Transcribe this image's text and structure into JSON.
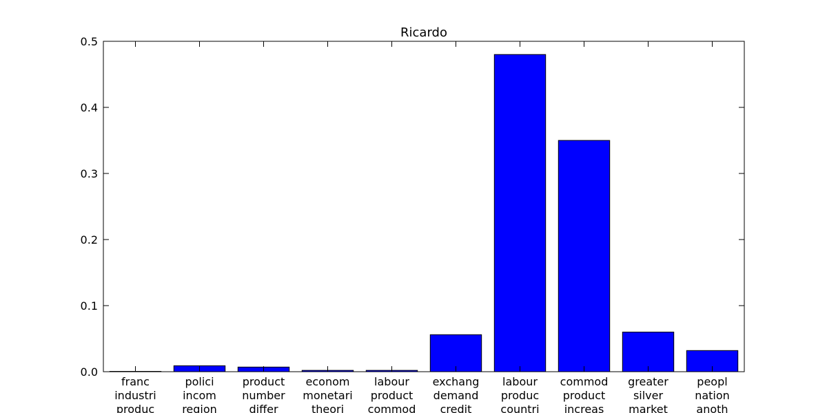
{
  "chart_data": {
    "type": "bar",
    "title": "Ricardo",
    "xlabel": "",
    "ylabel": "",
    "ylim": [
      0,
      0.5
    ],
    "yticks": [
      "0.0",
      "0.1",
      "0.2",
      "0.3",
      "0.4",
      "0.5"
    ],
    "categories": [
      [
        "franc",
        "industri",
        "produc"
      ],
      [
        "polici",
        "incom",
        "region"
      ],
      [
        "product",
        "number",
        "differ"
      ],
      [
        "econom",
        "monetari",
        "theori"
      ],
      [
        "labour",
        "product",
        "commod"
      ],
      [
        "exchang",
        "demand",
        "credit"
      ],
      [
        "labour",
        "produc",
        "countri"
      ],
      [
        "commod",
        "product",
        "increas"
      ],
      [
        "greater",
        "silver",
        "market"
      ],
      [
        "peopl",
        "nation",
        "anoth"
      ]
    ],
    "values": [
      0.0005,
      0.009,
      0.007,
      0.002,
      0.002,
      0.056,
      0.48,
      0.35,
      0.06,
      0.032
    ],
    "bar_color": "#0000ff",
    "grid": false
  }
}
